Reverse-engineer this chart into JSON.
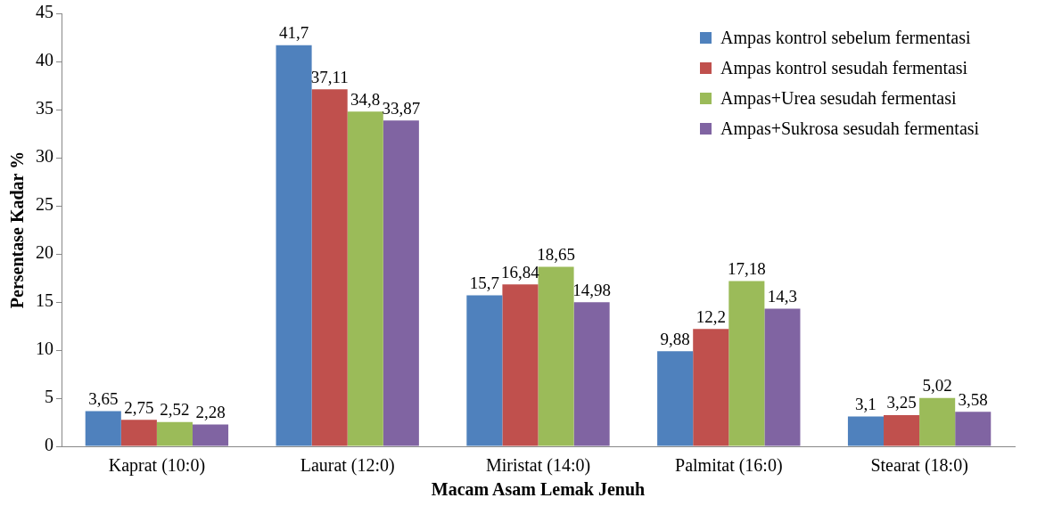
{
  "chart_data": {
    "type": "bar",
    "xlabel": "Macam Asam Lemak Jenuh",
    "ylabel": "Persentase Kadar %",
    "categories": [
      "Kaprat (10:0)",
      "Laurat (12:0)",
      "Miristat (14:0)",
      "Palmitat (16:0)",
      "Stearat (18:0)"
    ],
    "series": [
      {
        "name": "Ampas kontrol sebelum fermentasi",
        "color": "#4f81bd",
        "values": [
          3.65,
          41.7,
          15.7,
          9.88,
          3.1
        ],
        "value_labels": [
          "3,65",
          "41,7",
          "15,7",
          "9,88",
          "3,1"
        ]
      },
      {
        "name": "Ampas kontrol sesudah fermentasi",
        "color": "#c0504d",
        "values": [
          2.75,
          37.11,
          16.84,
          12.2,
          3.25
        ],
        "value_labels": [
          "2,75",
          "37,11",
          "16,84",
          "12,2",
          "3,25"
        ]
      },
      {
        "name": "Ampas+Urea sesudah fermentasi",
        "color": "#9bbb59",
        "values": [
          2.52,
          34.8,
          18.65,
          17.18,
          5.02
        ],
        "value_labels": [
          "2,52",
          "34,8",
          "18,65",
          "17,18",
          "5,02"
        ]
      },
      {
        "name": "Ampas+Sukrosa sesudah fermentasi",
        "color": "#8064a2",
        "values": [
          2.28,
          33.87,
          14.98,
          14.3,
          3.58
        ],
        "value_labels": [
          "2,28",
          "33,87",
          "14,98",
          "14,3",
          "3,58"
        ]
      }
    ],
    "ylim": [
      0,
      45
    ],
    "yticks": [
      0,
      5,
      10,
      15,
      20,
      25,
      30,
      35,
      40,
      45
    ],
    "grid": false,
    "legend": "top right"
  }
}
